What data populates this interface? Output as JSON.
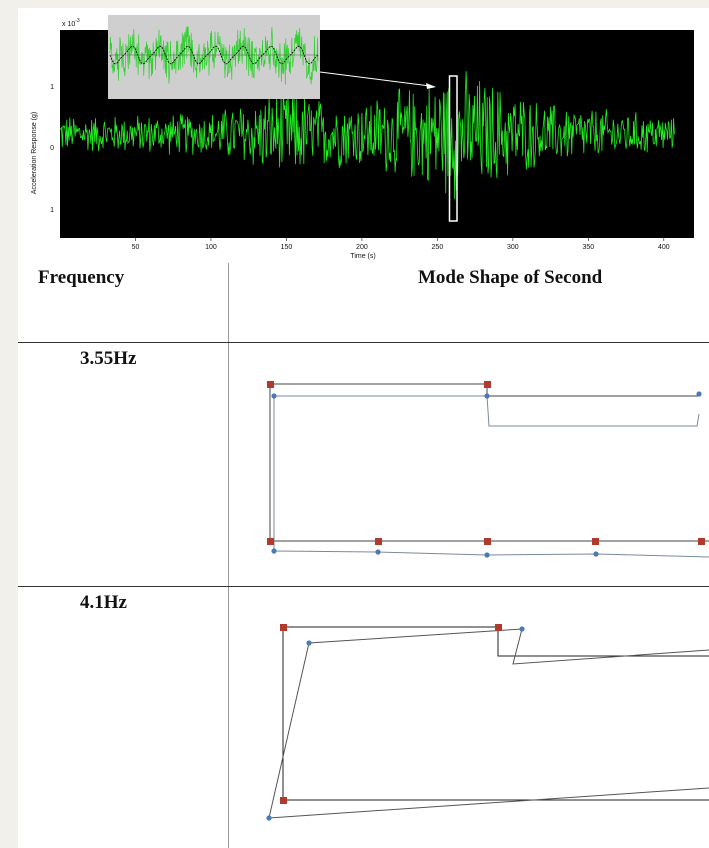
{
  "signal_plot": {
    "background_color": "#000000",
    "signal_color": "#22ee22",
    "inset_background": "#cfcfcf",
    "exponent_label": "x 10",
    "exponent_power": "-3",
    "ylabel": "Acceleration Response (g)",
    "xlabel": "Time (s)",
    "y_ticks": [
      "1",
      "0",
      "1"
    ],
    "x_ticks": [
      "50",
      "100",
      "150",
      "200",
      "250",
      "300",
      "350",
      "400"
    ]
  },
  "chart_data": {
    "type": "line",
    "x_range": [
      0,
      420
    ],
    "x_ticks": [
      50,
      100,
      150,
      200,
      250,
      300,
      350,
      400
    ],
    "y_range": [
      -1.5,
      1.5
    ],
    "y_scale_factor": "x 10^-3",
    "xlabel": "Time (s)",
    "ylabel": "Acceleration Response (g)",
    "envelope_x": [
      0,
      40,
      100,
      150,
      175,
      200,
      240,
      262,
      280,
      320,
      360,
      400,
      407
    ],
    "envelope_amplitude": [
      0.3,
      0.3,
      0.35,
      0.75,
      0.55,
      0.55,
      0.8,
      1.05,
      0.9,
      0.5,
      0.4,
      0.3,
      0.25
    ],
    "highlight_window_x": [
      258,
      263
    ],
    "grid": false
  },
  "table": {
    "col_frequency": "Frequency",
    "col_mode_shape": "Mode Shape of Second",
    "rows": [
      {
        "frequency": "3.55Hz"
      },
      {
        "frequency": "4.1Hz"
      }
    ]
  },
  "colors": {
    "undeformed_node": "#b03a2e",
    "deformed_node": "#4a7ab5",
    "undeformed_line": "#222222",
    "deformed_line": "#6a7a8a"
  }
}
